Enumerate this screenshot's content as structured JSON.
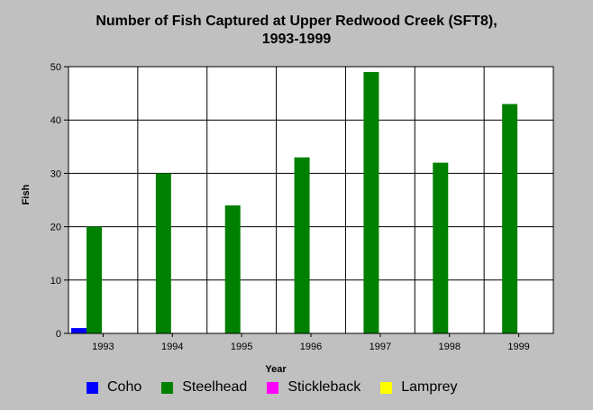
{
  "chart_data": {
    "type": "bar",
    "title_lines": [
      "Number of Fish Captured at Upper Redwood Creek (SFT8),",
      "1993-1999"
    ],
    "xlabel": "Year",
    "ylabel": "Fish",
    "categories": [
      "1993",
      "1994",
      "1995",
      "1996",
      "1997",
      "1998",
      "1999"
    ],
    "ylim": [
      0,
      50
    ],
    "yticks": [
      0,
      10,
      20,
      30,
      40,
      50
    ],
    "grid": true,
    "legend_position": "bottom",
    "series": [
      {
        "name": "Coho",
        "color": "#0000ff",
        "values": [
          1,
          0,
          0,
          0,
          0,
          0,
          0
        ]
      },
      {
        "name": "Steelhead",
        "color": "#008000",
        "values": [
          20,
          30,
          24,
          33,
          49,
          32,
          43
        ]
      },
      {
        "name": "Stickleback",
        "color": "#ff00ff",
        "values": [
          0,
          0,
          0,
          0,
          0,
          0,
          0
        ]
      },
      {
        "name": "Lamprey",
        "color": "#ffff00",
        "values": [
          0,
          0,
          0,
          0,
          0,
          0,
          0
        ]
      }
    ]
  }
}
